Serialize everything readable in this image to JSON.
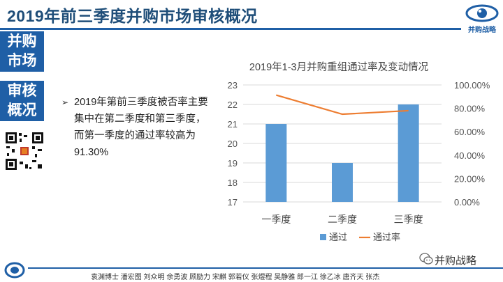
{
  "header": {
    "title": "2019年前三季度并购市场审核概况"
  },
  "brand": {
    "logo_text": "并购战略",
    "wechat_name": "并购战略"
  },
  "sidebar": {
    "blocks": [
      {
        "label": "并购\n市场"
      },
      {
        "label": "审核\n概况"
      }
    ]
  },
  "content": {
    "bullet": "2019年第前三季度被否率主要集中在第二季度和第三季度，而第一季度的通过率较高为91.30%"
  },
  "footer": {
    "names": "袁渊博士 潘宏图 刘众明 余勇波 顾励力 宋麒 郭若仪 张煜程 吴静雅 郎一江 徐乙冰 唐齐天 张杰"
  },
  "colors": {
    "accent": "#1f5fa6",
    "bar": "#5b9bd5",
    "line": "#ed7d31"
  },
  "chart_data": {
    "type": "bar",
    "title": "2019年1-3月并购重组通过率及变动情况",
    "categories": [
      "一季度",
      "二季度",
      "三季度"
    ],
    "series": [
      {
        "name": "通过",
        "type": "bar",
        "axis": "left",
        "values": [
          21,
          19,
          22
        ]
      },
      {
        "name": "通过率",
        "type": "line",
        "axis": "right",
        "values": [
          0.913,
          0.75,
          0.78
        ]
      }
    ],
    "y_left": {
      "min": 17,
      "max": 23,
      "ticks": [
        "17",
        "18",
        "19",
        "20",
        "21",
        "22",
        "23"
      ]
    },
    "y_right": {
      "min": 0,
      "max": 1,
      "ticks": [
        "0.00%",
        "20.00%",
        "40.00%",
        "60.00%",
        "80.00%",
        "100.00%"
      ]
    },
    "grid": true,
    "legend_position": "bottom"
  }
}
